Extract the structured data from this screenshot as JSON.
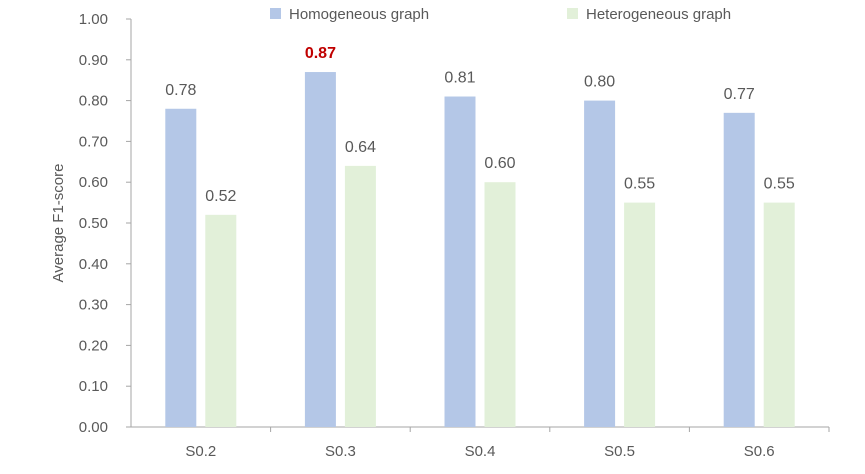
{
  "chart_data": {
    "type": "bar",
    "title": "",
    "xlabel": "",
    "ylabel": "Average F1-score",
    "ylim": [
      0,
      1.0
    ],
    "ytick_step": 0.1,
    "yticks": [
      "0.00",
      "0.10",
      "0.20",
      "0.30",
      "0.40",
      "0.50",
      "0.60",
      "0.70",
      "0.80",
      "0.90",
      "1.00"
    ],
    "categories": [
      "S0.2",
      "S0.3",
      "S0.4",
      "S0.5",
      "S0.6"
    ],
    "grid": false,
    "legend_position": "top",
    "series": [
      {
        "name": "Homogeneous graph",
        "color": "#b4c7e7",
        "values": [
          0.78,
          0.87,
          0.81,
          0.8,
          0.77
        ],
        "labels": [
          "0.78",
          "0.87",
          "0.81",
          "0.80",
          "0.77"
        ]
      },
      {
        "name": "Heterogeneous graph",
        "color": "#e2f0d9",
        "values": [
          0.52,
          0.64,
          0.6,
          0.55,
          0.55
        ],
        "labels": [
          "0.52",
          "0.64",
          "0.60",
          "0.55",
          "0.55"
        ]
      }
    ],
    "highlight": {
      "series": 0,
      "category": 1,
      "color": "#c00000"
    },
    "axis_color": "#595959"
  }
}
